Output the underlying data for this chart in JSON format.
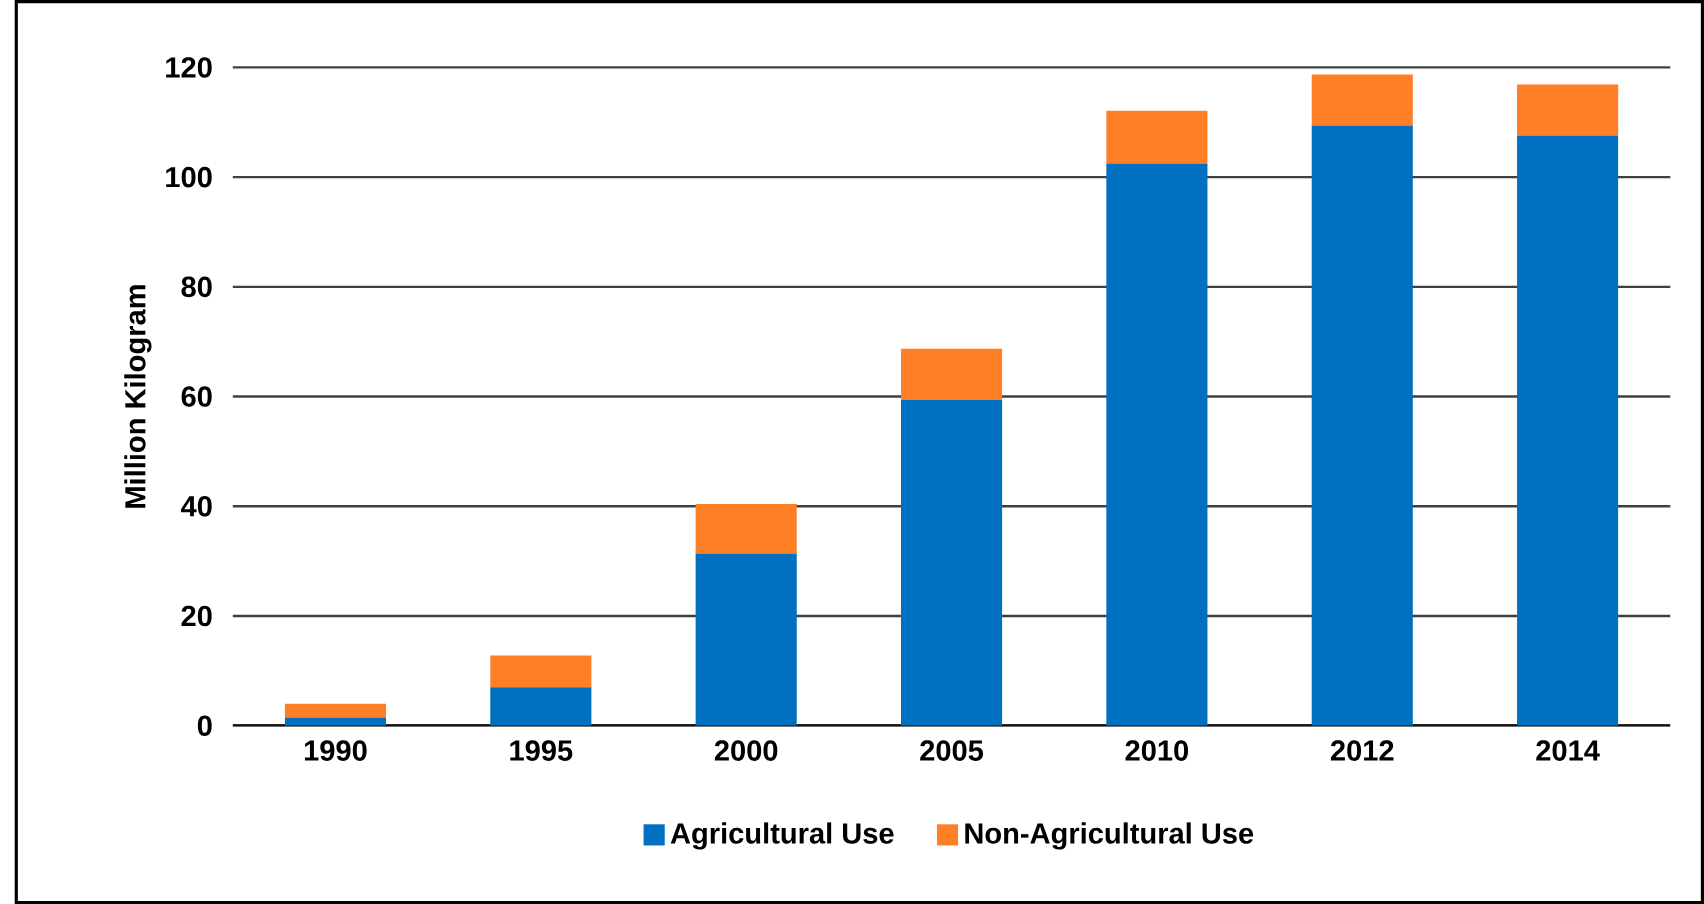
{
  "chart_data": {
    "type": "bar",
    "stacked": true,
    "ylabel": "Million Kilogram",
    "categories": [
      "1990",
      "1995",
      "2000",
      "2005",
      "2010",
      "2012",
      "2014"
    ],
    "series": [
      {
        "name": "Agricultural Use",
        "color": "#0070c0",
        "values": [
          1.5,
          7,
          31.4,
          59.4,
          102.5,
          109.4,
          107.6
        ]
      },
      {
        "name": "Non-Agricultural Use",
        "color": "#ff7f27",
        "values": [
          2.5,
          5.8,
          9,
          9.3,
          9.6,
          9.3,
          9.3
        ]
      }
    ],
    "ylim": [
      0,
      120
    ],
    "yticks": [
      0,
      20,
      40,
      60,
      80,
      100,
      120
    ],
    "grid": "y",
    "legend": "bottom"
  }
}
